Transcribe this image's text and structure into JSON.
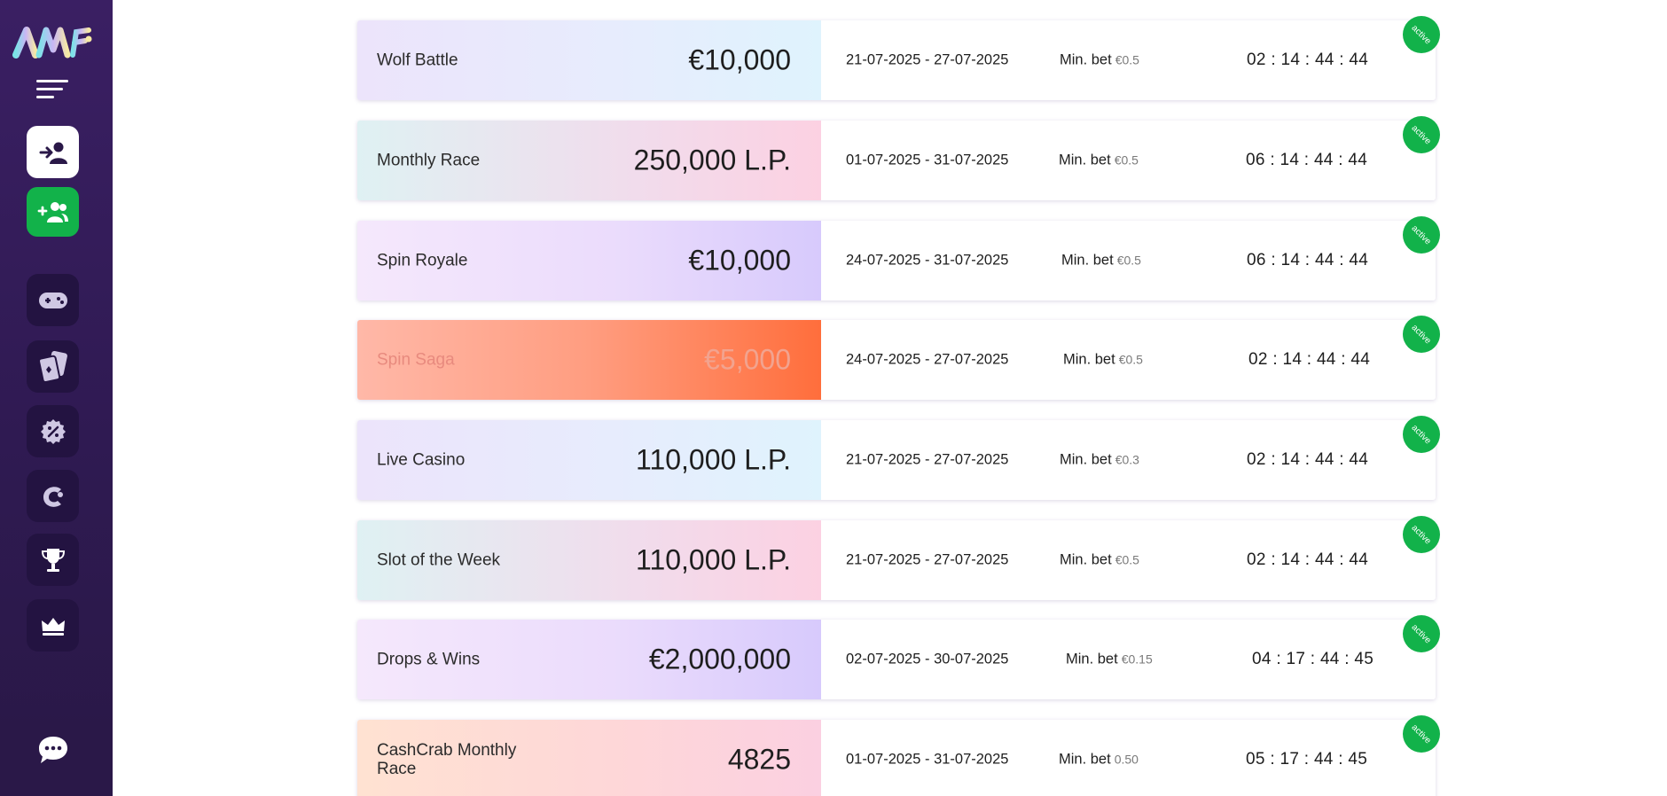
{
  "sidebar": {
    "items": [
      {
        "name": "login",
        "icon": "user-login-icon"
      },
      {
        "name": "register",
        "icon": "user-plus-icon"
      },
      {
        "name": "games",
        "icon": "gamepad-icon"
      },
      {
        "name": "cards",
        "icon": "playing-cards-icon"
      },
      {
        "name": "promotions",
        "icon": "percent-badge-icon"
      },
      {
        "name": "casino",
        "icon": "c-logo-icon"
      },
      {
        "name": "tournaments",
        "icon": "trophy-icon"
      },
      {
        "name": "vip",
        "icon": "crown-icon"
      }
    ],
    "chat_icon": "chat-bubble-icon"
  },
  "colors": {
    "sidebar": "#3a1f63",
    "active_badge": "#12b24a",
    "register_button": "#12b24a"
  },
  "tournaments": [
    {
      "name": "Wolf Battle",
      "prize": "€10,000",
      "dates": "21-07-2025 - 27-07-2025",
      "min_bet_label": "Min. bet",
      "min_bet": "€0.5",
      "timer": "02 : 14 : 44 : 44",
      "status": "active"
    },
    {
      "name": "Monthly Race",
      "prize": "250,000 L.P.",
      "dates": "01-07-2025 - 31-07-2025",
      "min_bet_label": "Min. bet",
      "min_bet": "€0.5",
      "timer": "06 : 14 : 44 : 44",
      "status": "active"
    },
    {
      "name": "Spin Royale",
      "prize": "€10,000",
      "dates": "24-07-2025 - 31-07-2025",
      "min_bet_label": "Min. bet",
      "min_bet": "€0.5",
      "timer": "06 : 14 : 44 : 44",
      "status": "active"
    },
    {
      "name": "Spin Saga",
      "prize": "€5,000",
      "dates": "24-07-2025 - 27-07-2025",
      "min_bet_label": "Min. bet",
      "min_bet": "€0.5",
      "timer": "02 : 14 : 44 : 44",
      "status": "active"
    },
    {
      "name": "Live Casino",
      "prize": "110,000 L.P.",
      "dates": "21-07-2025 - 27-07-2025",
      "min_bet_label": "Min. bet",
      "min_bet": "€0.3",
      "timer": "02 : 14 : 44 : 44",
      "status": "active"
    },
    {
      "name": "Slot of the Week",
      "prize": "110,000 L.P.",
      "dates": "21-07-2025 - 27-07-2025",
      "min_bet_label": "Min. bet",
      "min_bet": "€0.5",
      "timer": "02 : 14 : 44 : 44",
      "status": "active"
    },
    {
      "name": "Drops & Wins",
      "prize": "€2,000,000",
      "dates": "02-07-2025 - 30-07-2025",
      "min_bet_label": "Min. bet",
      "min_bet": "€0.15",
      "timer": "04 : 17 : 44 : 45",
      "status": "active"
    },
    {
      "name": "CashCrab Monthly Race",
      "prize": "4825",
      "dates": "01-07-2025 - 31-07-2025",
      "min_bet_label": "Min. bet",
      "min_bet": "0.50",
      "timer": "05 : 17 : 44 : 45",
      "status": "active"
    }
  ]
}
